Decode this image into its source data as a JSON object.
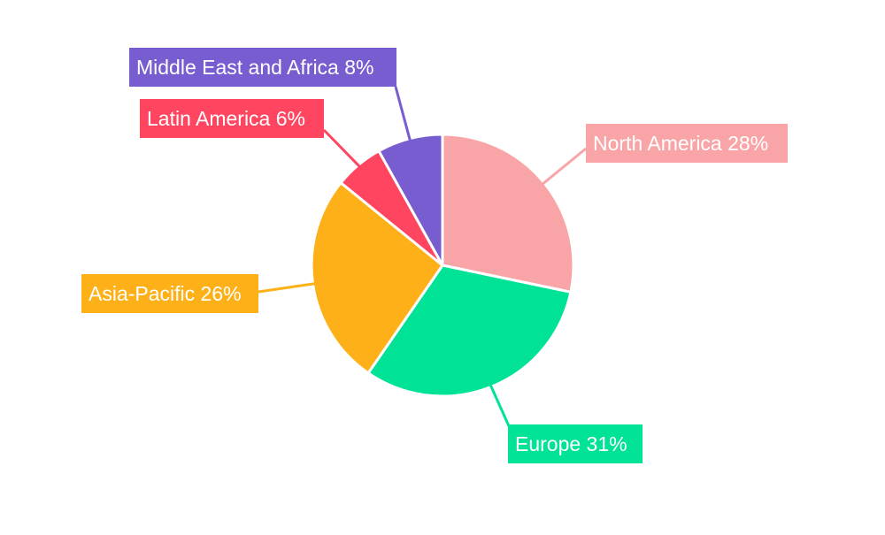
{
  "chart_data": {
    "type": "pie",
    "title": "",
    "slices": [
      {
        "label": "North America",
        "value": 28,
        "percent_label": "28%",
        "color": "#F9A5A7"
      },
      {
        "label": "Europe",
        "value": 31,
        "percent_label": "31%",
        "color": "#00E396"
      },
      {
        "label": "Asia-Pacific",
        "value": 26,
        "percent_label": "26%",
        "color": "#FEB019"
      },
      {
        "label": "Latin America",
        "value": 6,
        "percent_label": "6%",
        "color": "#FF4560"
      },
      {
        "label": "Middle East and Africa",
        "value": 8,
        "percent_label": "8%",
        "color": "#775DD0"
      }
    ],
    "start_angle_deg": 0,
    "direction": "clockwise",
    "legend": "none",
    "data_labels": "outside-with-leader-lines"
  }
}
